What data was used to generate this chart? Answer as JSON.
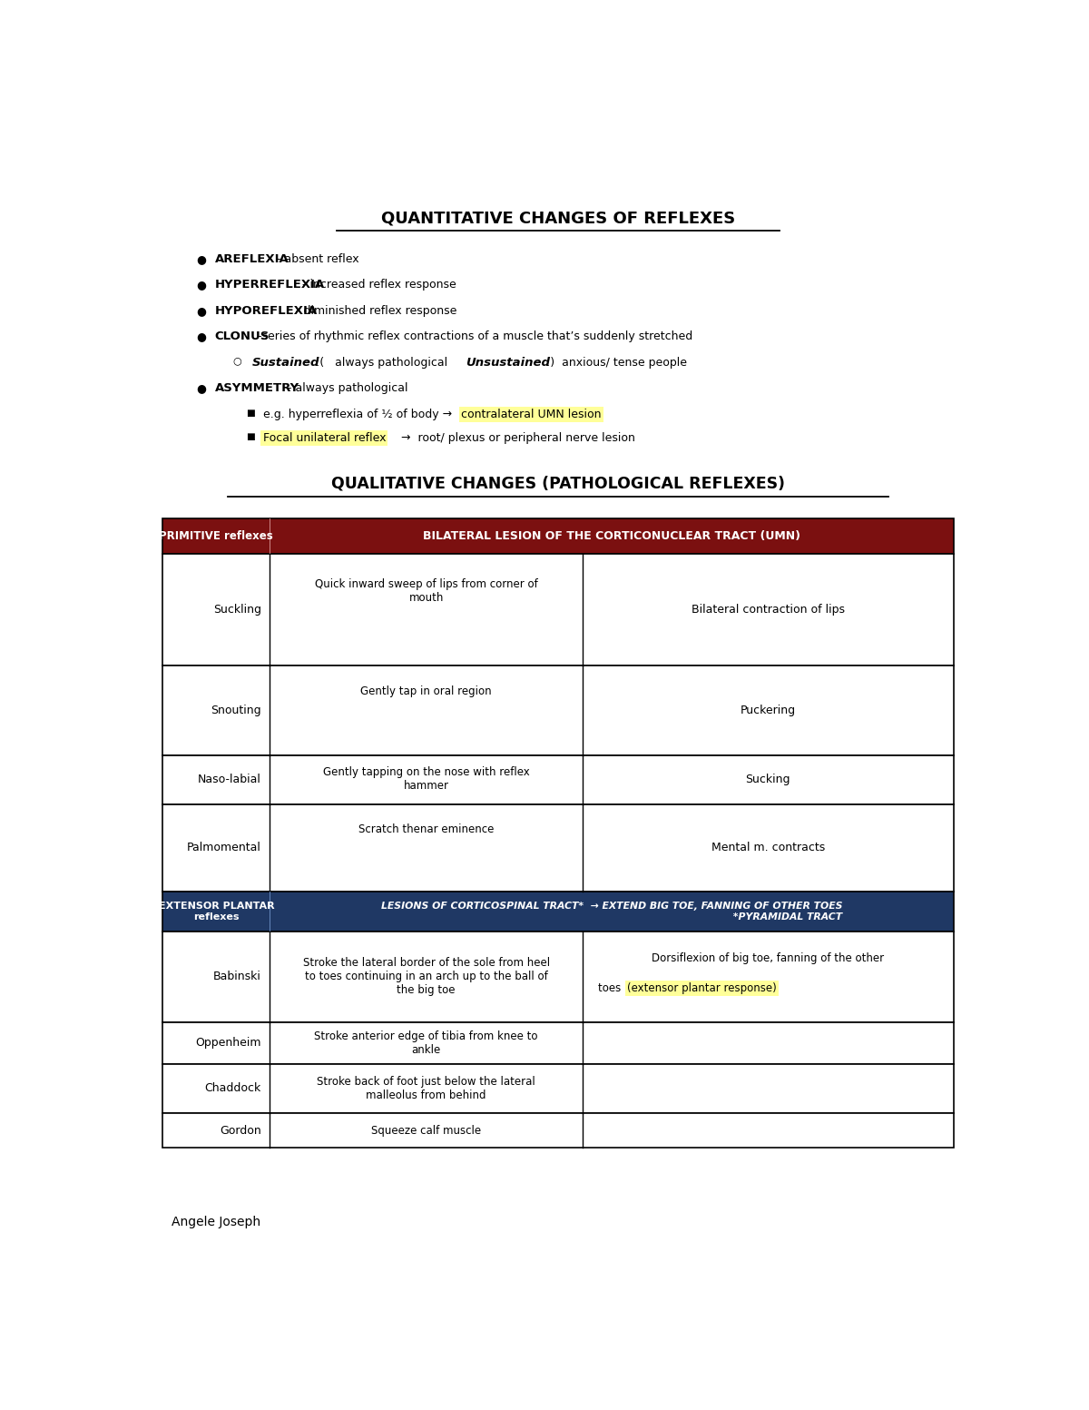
{
  "title1": "QUANTITATIVE CHANGES OF REFLEXES",
  "title2": "QUALITATIVE CHANGES (PATHOLOGICAL REFLEXES)",
  "highlight_yellow": "#FFFF99",
  "header_dark_red": "#7B1010",
  "header_dark_blue": "#1F3864",
  "table_border_color": "#000000",
  "primitive_header": "PRIMITIVE reflexes",
  "bilateral_header": "BILATERAL LESION OF THE CORTICONUCLEAR TRACT (UMN)",
  "extensor_header": "EXTENSOR PLANTAR\nreflexes",
  "extensor_desc_line1": "LESIONS OF CORTICOSPINAL TRACT*  → EXTEND BIG TOE, FANNING OF OTHER TOES",
  "extensor_desc_line2": "                                                         *PYRAMIDAL TRACT",
  "rows_primitive": [
    {
      "name": "Suckling",
      "desc": "Quick inward sweep of lips from corner of\nmouth",
      "response": "Bilateral contraction of lips"
    },
    {
      "name": "Snouting",
      "desc": "Gently tap in oral region",
      "response": "Puckering"
    },
    {
      "name": "Naso-labial",
      "desc": "Gently tapping on the nose with reflex\nhammer",
      "response": "Sucking"
    },
    {
      "name": "Palmomental",
      "desc": "Scratch thenar eminence",
      "response": "Mental m. contracts"
    }
  ],
  "rows_extensor": [
    {
      "name": "Babinski",
      "desc": "Stroke the lateral border of the sole from heel\nto toes continuing in an arch up to the ball of\nthe big toe",
      "response_line1": "Dorsiflexion of big toe, fanning of the other",
      "response_line2_pre": "toes ",
      "response_line2_hl": "(extensor plantar response)"
    },
    {
      "name": "Oppenheim",
      "desc": "Stroke anterior edge of tibia from knee to\nankle",
      "response_line1": "",
      "response_line2_pre": "",
      "response_line2_hl": ""
    },
    {
      "name": "Chaddock",
      "desc": "Stroke back of foot just below the lateral\nmalleolus from behind",
      "response_line1": "",
      "response_line2_pre": "",
      "response_line2_hl": ""
    },
    {
      "name": "Gordon",
      "desc": "Squeeze calf muscle",
      "response_line1": "",
      "response_line2_pre": "",
      "response_line2_hl": ""
    }
  ],
  "footer": "Angele Joseph",
  "bg_color": "#FFFFFF"
}
